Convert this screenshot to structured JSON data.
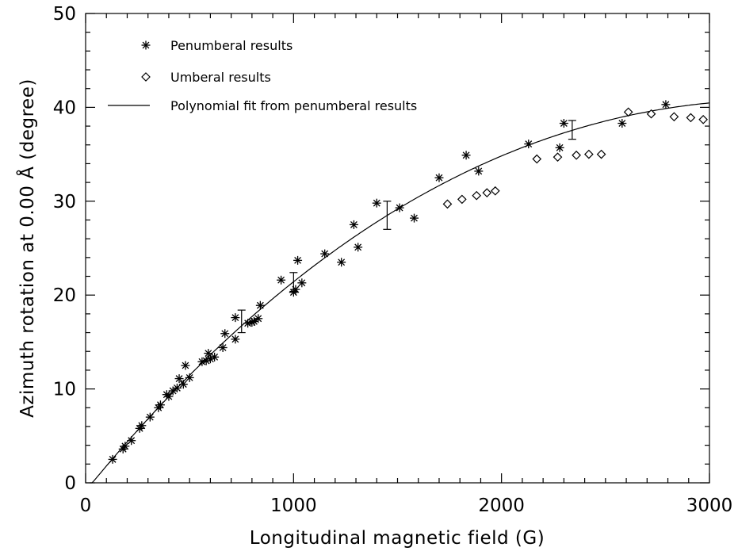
{
  "chart_data": {
    "type": "scatter",
    "title": "",
    "xlabel": "Longitudinal magnetic field (G)",
    "ylabel": "Azimuth rotation at 0.00  Å (degree)",
    "xlim": [
      0,
      3000
    ],
    "ylim": [
      0,
      50
    ],
    "x_ticks": [
      0,
      1000,
      2000,
      3000
    ],
    "y_ticks": [
      0,
      10,
      20,
      30,
      40,
      50
    ],
    "grid": false,
    "legend_position": "top-left",
    "series": [
      {
        "name": "Penumberal results",
        "marker": "asterisk",
        "color": "#000000",
        "points": [
          [
            130,
            2.5
          ],
          [
            180,
            3.6
          ],
          [
            190,
            3.9
          ],
          [
            220,
            4.5
          ],
          [
            260,
            5.8
          ],
          [
            270,
            6.1
          ],
          [
            310,
            7.0
          ],
          [
            350,
            8.0
          ],
          [
            360,
            8.3
          ],
          [
            390,
            9.4
          ],
          [
            400,
            9.2
          ],
          [
            420,
            9.8
          ],
          [
            440,
            10.1
          ],
          [
            450,
            11.1
          ],
          [
            470,
            10.5
          ],
          [
            480,
            12.5
          ],
          [
            500,
            11.2
          ],
          [
            560,
            12.9
          ],
          [
            580,
            13.0
          ],
          [
            590,
            13.8
          ],
          [
            600,
            13.2
          ],
          [
            620,
            13.4
          ],
          [
            660,
            14.4
          ],
          [
            670,
            15.9
          ],
          [
            720,
            15.3
          ],
          [
            720,
            17.6
          ],
          [
            780,
            17.0
          ],
          [
            800,
            17.1
          ],
          [
            810,
            17.2
          ],
          [
            830,
            17.5
          ],
          [
            840,
            18.9
          ],
          [
            940,
            21.6
          ],
          [
            1000,
            20.3
          ],
          [
            1010,
            20.6
          ],
          [
            1020,
            23.7
          ],
          [
            1040,
            21.3
          ],
          [
            1150,
            24.4
          ],
          [
            1230,
            23.5
          ],
          [
            1290,
            27.5
          ],
          [
            1310,
            25.1
          ],
          [
            1400,
            29.8
          ],
          [
            1510,
            29.3
          ],
          [
            1580,
            28.2
          ],
          [
            1700,
            32.5
          ],
          [
            1830,
            34.9
          ],
          [
            1890,
            33.2
          ],
          [
            2130,
            36.1
          ],
          [
            2280,
            35.7
          ],
          [
            2300,
            38.3
          ],
          [
            2580,
            38.3
          ],
          [
            2790,
            40.3
          ]
        ]
      },
      {
        "name": "Umberal results",
        "marker": "diamond",
        "color": "#000000",
        "points": [
          [
            1740,
            29.7
          ],
          [
            1810,
            30.2
          ],
          [
            1880,
            30.6
          ],
          [
            1930,
            30.9
          ],
          [
            1970,
            31.1
          ],
          [
            2170,
            34.5
          ],
          [
            2270,
            34.7
          ],
          [
            2360,
            34.9
          ],
          [
            2420,
            35.0
          ],
          [
            2480,
            35.0
          ],
          [
            2610,
            39.5
          ],
          [
            2720,
            39.3
          ],
          [
            2830,
            39.0
          ],
          [
            2910,
            38.9
          ],
          [
            2970,
            38.7
          ]
        ]
      },
      {
        "name": "Polynomial fit from penumberal results",
        "marker": "line",
        "color": "#000000",
        "fit": "polynomial"
      }
    ],
    "error_bars": [
      {
        "x": 750,
        "y_low": 16.0,
        "y_high": 18.4
      },
      {
        "x": 1000,
        "y_low": 20.4,
        "y_high": 22.4
      },
      {
        "x": 1450,
        "y_low": 27.0,
        "y_high": 30.0
      },
      {
        "x": 2340,
        "y_low": 36.6,
        "y_high": 38.6
      }
    ]
  }
}
